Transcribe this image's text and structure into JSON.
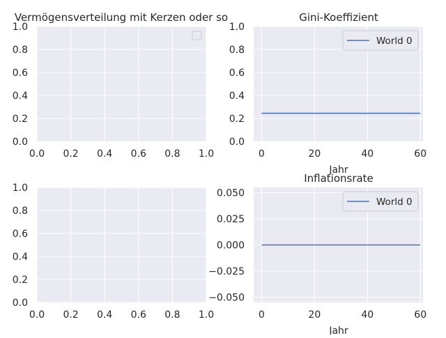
{
  "chart_data": [
    {
      "type": "line",
      "title": "Vermögensverteilung mit Kerzen oder so",
      "xlabel": "",
      "ylabel": "",
      "xlim": [
        0,
        1
      ],
      "ylim": [
        0,
        1
      ],
      "x_ticks": [
        "0.0",
        "0.2",
        "0.4",
        "0.6",
        "0.8",
        "1.0"
      ],
      "y_ticks": [
        "0.0",
        "0.2",
        "0.4",
        "0.6",
        "0.8",
        "1.0"
      ],
      "grid": true,
      "legend": "top-right",
      "series": []
    },
    {
      "type": "line",
      "title": "Gini-Koeffizient",
      "xlabel": "Jahr",
      "ylabel": "",
      "xlim": [
        -3,
        61
      ],
      "ylim": [
        0,
        1
      ],
      "x_ticks": [
        "0",
        "20",
        "40",
        "60"
      ],
      "y_ticks": [
        "0.0",
        "0.2",
        "0.4",
        "0.6",
        "0.8",
        "1.0"
      ],
      "grid": true,
      "legend": "top-right",
      "series": [
        {
          "name": "World 0",
          "color": "#4c72b0",
          "x": [
            0,
            60
          ],
          "y": [
            0.245,
            0.245
          ]
        }
      ]
    },
    {
      "type": "line",
      "title": "",
      "xlabel": "",
      "ylabel": "",
      "xlim": [
        0,
        1
      ],
      "ylim": [
        0,
        1
      ],
      "x_ticks": [
        "0.0",
        "0.2",
        "0.4",
        "0.6",
        "0.8",
        "1.0"
      ],
      "y_ticks": [
        "0.0",
        "0.2",
        "0.4",
        "0.6",
        "0.8",
        "1.0"
      ],
      "grid": true,
      "legend": "none",
      "series": []
    },
    {
      "type": "line",
      "title": "Inflationsrate",
      "xlabel": "Jahr",
      "ylabel": "",
      "xlim": [
        -3,
        61
      ],
      "ylim": [
        -0.055,
        0.055
      ],
      "x_ticks": [
        "0",
        "20",
        "40",
        "60"
      ],
      "y_ticks": [
        "0.050",
        "0.025",
        "0.000",
        "−0.025",
        "−0.050"
      ],
      "grid": true,
      "legend": "top-right",
      "series": [
        {
          "name": "World 0",
          "color": "#4c72b0",
          "x": [
            0,
            60
          ],
          "y": [
            0,
            0
          ]
        }
      ]
    }
  ],
  "colors": {
    "axes_background": "#eaeaf2",
    "grid": "#ffffff",
    "line": "#4c72b0",
    "text": "#262626"
  }
}
